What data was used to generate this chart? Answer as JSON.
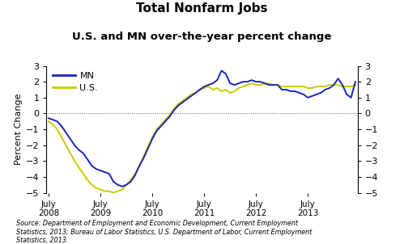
{
  "title_line1": "Total Nonfarm Jobs",
  "title_line2": "U.S. and MN over-the-year percent change",
  "ylabel": "Percent Change",
  "ylim": [
    -5,
    3
  ],
  "yticks": [
    -5,
    -4,
    -3,
    -2,
    -1,
    0,
    1,
    2,
    3
  ],
  "source_text": "Source: Department of Employment and Economic Development, Current Employment\nStatistics, 2013; Bureau of Labor Statistics, U.S. Department of Labor, Current Employment\nStatistics, 2013.",
  "mn_color": "#1a25b8",
  "us_color": "#c8cc00",
  "mn_linewidth": 1.4,
  "us_linewidth": 1.4,
  "xtick_labels": [
    "July\n2008",
    "July\n2009",
    "July\n2010",
    "July\n2011",
    "July\n2012",
    "July\n2013"
  ],
  "mn_data": [
    -0.3,
    -0.4,
    -0.5,
    -0.8,
    -1.2,
    -1.6,
    -2.0,
    -2.3,
    -2.5,
    -2.9,
    -3.3,
    -3.5,
    -3.6,
    -3.7,
    -3.8,
    -4.3,
    -4.5,
    -4.6,
    -4.5,
    -4.3,
    -3.9,
    -3.3,
    -2.8,
    -2.2,
    -1.6,
    -1.1,
    -0.8,
    -0.5,
    -0.2,
    0.2,
    0.5,
    0.7,
    0.9,
    1.1,
    1.3,
    1.5,
    1.7,
    1.8,
    1.9,
    2.1,
    2.7,
    2.5,
    1.9,
    1.8,
    1.9,
    2.0,
    2.0,
    2.1,
    2.0,
    2.0,
    1.9,
    1.8,
    1.8,
    1.8,
    1.5,
    1.5,
    1.4,
    1.4,
    1.3,
    1.2,
    1.0,
    1.1,
    1.2,
    1.3,
    1.5,
    1.6,
    1.8,
    2.2,
    1.8,
    1.2,
    1.0,
    2.0
  ],
  "us_data": [
    -0.5,
    -0.7,
    -1.0,
    -1.5,
    -2.0,
    -2.5,
    -3.0,
    -3.4,
    -3.8,
    -4.2,
    -4.5,
    -4.7,
    -4.8,
    -4.9,
    -4.9,
    -5.0,
    -4.9,
    -4.8,
    -4.5,
    -4.2,
    -3.8,
    -3.3,
    -2.7,
    -2.1,
    -1.5,
    -1.0,
    -0.7,
    -0.4,
    -0.1,
    0.3,
    0.6,
    0.8,
    1.0,
    1.2,
    1.3,
    1.5,
    1.6,
    1.7,
    1.5,
    1.6,
    1.4,
    1.5,
    1.3,
    1.4,
    1.6,
    1.7,
    1.8,
    1.9,
    1.8,
    1.8,
    1.9,
    1.9,
    1.8,
    1.8,
    1.7,
    1.7,
    1.7,
    1.7,
    1.7,
    1.7,
    1.6,
    1.6,
    1.7,
    1.7,
    1.7,
    1.8,
    1.8,
    1.8,
    1.7,
    1.7,
    1.7,
    1.8
  ],
  "n_months": 72,
  "fig_width": 4.99,
  "fig_height": 3.02,
  "fig_dpi": 100
}
